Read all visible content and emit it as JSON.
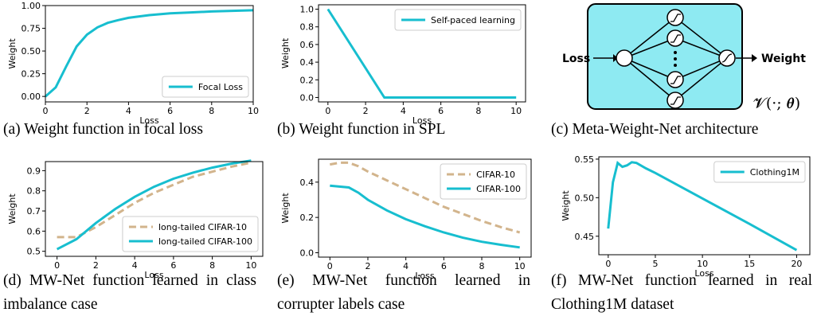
{
  "chart_data": [
    {
      "type": "line",
      "xlabel": "Loss",
      "ylabel": "Weight",
      "xlim": [
        0,
        10
      ],
      "ylim": [
        -0.06,
        1.0
      ],
      "xticks": [
        0,
        2,
        4,
        6,
        8,
        10
      ],
      "yticks": [
        {
          "value": 0,
          "label": "0.00"
        },
        0.25,
        {
          "value": 0.5,
          "label": "0.50"
        },
        0.75,
        {
          "value": 1,
          "label": "1.00"
        }
      ],
      "legend": "lower right",
      "x": [
        0,
        0.5,
        1,
        1.5,
        2,
        2.5,
        3,
        3.5,
        4,
        5,
        6,
        7,
        8,
        9,
        10
      ],
      "series": [
        {
          "name": "Focal Loss",
          "color": "#17becf",
          "linestyle": "solid",
          "values": [
            0,
            0.1,
            0.33,
            0.55,
            0.68,
            0.76,
            0.81,
            0.84,
            0.865,
            0.895,
            0.915,
            0.925,
            0.935,
            0.942,
            0.948
          ]
        }
      ]
    },
    {
      "type": "line",
      "xlabel": "Loss",
      "ylabel": "Weight",
      "xlim": [
        -0.5,
        10.5
      ],
      "ylim": [
        -0.05,
        1.05
      ],
      "xticks": [
        0,
        2,
        4,
        6,
        8,
        10
      ],
      "yticks": [
        {
          "value": 0,
          "label": "0.0"
        },
        0.2,
        0.4,
        0.6,
        0.8,
        {
          "value": 1,
          "label": "1.0"
        }
      ],
      "legend": "upper right",
      "x": [
        0,
        3,
        10
      ],
      "series": [
        {
          "name": "Self-paced learning",
          "color": "#17becf",
          "linestyle": "solid",
          "values": [
            1,
            0,
            0
          ]
        }
      ]
    },
    {
      "type": "line",
      "xlabel": "Loss",
      "ylabel": "Weight",
      "xlim": [
        -0.6,
        10.6
      ],
      "ylim": [
        0.475,
        0.945
      ],
      "xticks": [
        0,
        2,
        4,
        6,
        8,
        10
      ],
      "yticks": [
        0.5,
        0.6,
        0.7,
        0.8,
        0.9
      ],
      "legend": "lower right",
      "x": [
        0,
        1,
        2,
        3,
        4,
        5,
        6,
        7,
        8,
        9,
        10
      ],
      "series": [
        {
          "name": "long-tailed CIFAR-10",
          "color": "#d2b48c",
          "linestyle": "dashed",
          "values": [
            0.57,
            0.57,
            0.62,
            0.68,
            0.74,
            0.79,
            0.83,
            0.87,
            0.895,
            0.92,
            0.94
          ]
        },
        {
          "name": "long-tailed CIFAR-100",
          "color": "#17becf",
          "linestyle": "solid",
          "values": [
            0.51,
            0.56,
            0.64,
            0.71,
            0.77,
            0.82,
            0.86,
            0.89,
            0.915,
            0.935,
            0.95
          ]
        }
      ]
    },
    {
      "type": "line",
      "xlabel": "Loss",
      "ylabel": "Weight",
      "xlim": [
        -0.6,
        10.6
      ],
      "ylim": [
        -0.025,
        0.53
      ],
      "xticks": [
        0,
        2,
        4,
        6,
        8,
        10
      ],
      "yticks": [
        {
          "value": 0,
          "label": "0.0"
        },
        0.2,
        0.4
      ],
      "legend": "upper right",
      "x": [
        0,
        0.5,
        1,
        1.5,
        2,
        3,
        4,
        5,
        6,
        7,
        8,
        9,
        10
      ],
      "series": [
        {
          "name": "CIFAR-10",
          "color": "#d2b48c",
          "linestyle": "dashed",
          "values": [
            0.5,
            0.51,
            0.51,
            0.49,
            0.46,
            0.41,
            0.36,
            0.31,
            0.26,
            0.22,
            0.18,
            0.145,
            0.115
          ]
        },
        {
          "name": "CIFAR-100",
          "color": "#17becf",
          "linestyle": "solid",
          "values": [
            0.38,
            0.375,
            0.37,
            0.34,
            0.3,
            0.24,
            0.19,
            0.15,
            0.115,
            0.085,
            0.062,
            0.045,
            0.03
          ]
        }
      ]
    },
    {
      "type": "line",
      "xlabel": "Loss",
      "ylabel": "Weight",
      "xlim": [
        -1,
        21.4
      ],
      "ylim": [
        0.426,
        0.553
      ],
      "xticks": [
        0,
        5,
        10,
        15,
        20
      ],
      "yticks": [
        0.45,
        {
          "value": 0.5,
          "label": "0.50"
        },
        0.55
      ],
      "legend": "upper right",
      "x": [
        0,
        0.5,
        1,
        1.5,
        2,
        2.5,
        3,
        4,
        5,
        10,
        15,
        20
      ],
      "series": [
        {
          "name": "Clothing1M",
          "color": "#17becf",
          "linestyle": "solid",
          "values": [
            0.46,
            0.52,
            0.545,
            0.54,
            0.542,
            0.546,
            0.545,
            0.538,
            0.532,
            0.499,
            0.466,
            0.432
          ]
        }
      ]
    }
  ],
  "diagram": {
    "input_label": "Loss",
    "output_label": "Weight",
    "formula": "𝓥(·; 𝜽)"
  },
  "captions": [
    "(a) Weight function in focal loss",
    "(b) Weight function in SPL",
    "(c) Meta-Weight-Net architecture",
    "(d) MW-Net function learned in class imbalance case",
    "(e) MW-Net function learned in corrupter labels case",
    "(f) MW-Net function learned in real Clothing1M dataset"
  ]
}
